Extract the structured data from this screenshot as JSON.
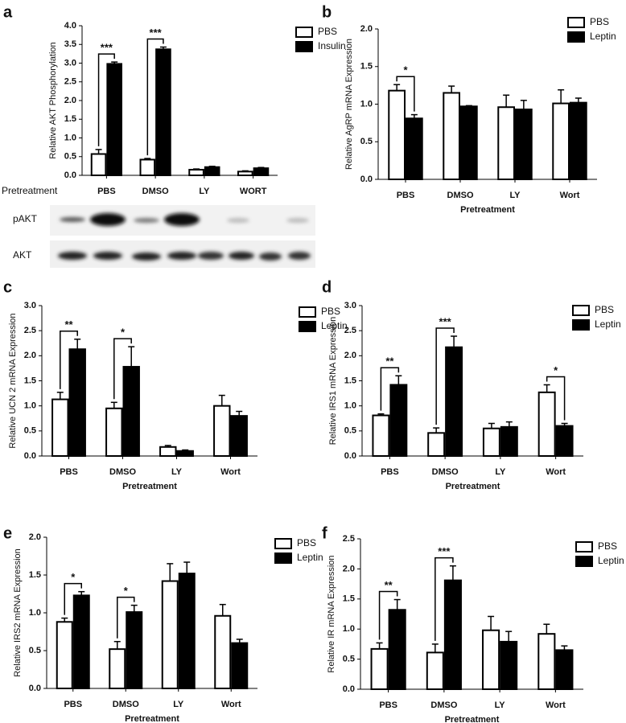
{
  "chart_data": [
    {
      "type": "bar",
      "panel": "a",
      "ylabel": "Relative AKT Phosphorylation",
      "row_label": "Pretreatment",
      "categories": [
        "PBS",
        "DMSO",
        "LY",
        "WORT"
      ],
      "series": [
        {
          "name": "PBS",
          "color": "#ffffff",
          "values": [
            0.57,
            0.42,
            0.15,
            0.1
          ],
          "errors": [
            0.12,
            0.03,
            0.02,
            0.02
          ]
        },
        {
          "name": "Insulin",
          "color": "#000000",
          "values": [
            2.98,
            3.37,
            0.22,
            0.19
          ],
          "errors": [
            0.05,
            0.06,
            0.02,
            0.02
          ]
        }
      ],
      "significance": [
        "***",
        "***",
        null,
        null
      ],
      "blot_rows": [
        "pAKT",
        "AKT"
      ],
      "ylim": [
        0,
        4
      ],
      "yticks": [
        {
          "value": 0,
          "label": "0.0"
        },
        0.5,
        {
          "value": 1,
          "label": "1.0"
        },
        1.5,
        {
          "value": 2,
          "label": "2.0"
        },
        2.5,
        {
          "value": 3,
          "label": "3.0"
        },
        3.5,
        {
          "value": 4,
          "label": "4.0"
        }
      ]
    },
    {
      "type": "bar",
      "panel": "b",
      "ylabel": "Relative AgRP mRNA Expression",
      "xlabel": "Pretreatment",
      "categories": [
        "PBS",
        "DMSO",
        "LY",
        "Wort"
      ],
      "series": [
        {
          "name": "PBS",
          "color": "#ffffff",
          "values": [
            1.18,
            1.15,
            0.96,
            1.01
          ],
          "errors": [
            0.08,
            0.09,
            0.16,
            0.18
          ]
        },
        {
          "name": "Leptin",
          "color": "#000000",
          "values": [
            0.81,
            0.97,
            0.93,
            1.02
          ],
          "errors": [
            0.05,
            0.01,
            0.12,
            0.06
          ]
        }
      ],
      "significance": [
        "*",
        null,
        null,
        null
      ],
      "ylim": [
        0,
        2
      ],
      "yticks": [
        {
          "value": 0,
          "label": "0.0"
        },
        0.5,
        {
          "value": 1,
          "label": "1.0"
        },
        1.5,
        {
          "value": 2,
          "label": "2.0"
        }
      ]
    },
    {
      "type": "bar",
      "panel": "c",
      "ylabel": "Relative UCN 2 mRNA Expression",
      "xlabel": "Pretreatment",
      "categories": [
        "PBS",
        "DMSO",
        "LY",
        "Wort"
      ],
      "series": [
        {
          "name": "PBS",
          "color": "#ffffff",
          "values": [
            1.13,
            0.95,
            0.18,
            1.0
          ],
          "errors": [
            0.14,
            0.12,
            0.03,
            0.21
          ]
        },
        {
          "name": "Leptin",
          "color": "#000000",
          "values": [
            2.13,
            1.78,
            0.1,
            0.8
          ],
          "errors": [
            0.2,
            0.4,
            0.02,
            0.09
          ]
        }
      ],
      "significance": [
        "**",
        "*",
        null,
        null
      ],
      "ylim": [
        0,
        3
      ],
      "yticks": [
        {
          "value": 0,
          "label": "0.0"
        },
        0.5,
        {
          "value": 1,
          "label": "1.0"
        },
        1.5,
        {
          "value": 2,
          "label": "2.0"
        },
        2.5,
        {
          "value": 3,
          "label": "3.0"
        }
      ]
    },
    {
      "type": "bar",
      "panel": "d",
      "ylabel": "Relative IRS1 mRNA Expression",
      "xlabel": "Pretreatment",
      "categories": [
        "PBS",
        "DMSO",
        "LY",
        "Wort"
      ],
      "series": [
        {
          "name": "PBS",
          "color": "#ffffff",
          "values": [
            0.81,
            0.46,
            0.55,
            1.27
          ],
          "errors": [
            0.03,
            0.1,
            0.1,
            0.15
          ]
        },
        {
          "name": "Leptin",
          "color": "#000000",
          "values": [
            1.42,
            2.17,
            0.58,
            0.6
          ],
          "errors": [
            0.18,
            0.22,
            0.1,
            0.05
          ]
        }
      ],
      "significance": [
        "**",
        "***",
        null,
        "*"
      ],
      "ylim": [
        0,
        3
      ],
      "yticks": [
        {
          "value": 0,
          "label": "0.0"
        },
        0.5,
        {
          "value": 1,
          "label": "1.0"
        },
        1.5,
        {
          "value": 2,
          "label": "2.0"
        },
        2.5,
        {
          "value": 3,
          "label": "3.0"
        }
      ]
    },
    {
      "type": "bar",
      "panel": "e",
      "ylabel": "Relative IRS2 mRNA Expression",
      "xlabel": "Pretreatment",
      "categories": [
        "PBS",
        "DMSO",
        "LY",
        "Wort"
      ],
      "series": [
        {
          "name": "PBS",
          "color": "#ffffff",
          "values": [
            0.88,
            0.52,
            1.42,
            0.96
          ],
          "errors": [
            0.05,
            0.1,
            0.23,
            0.15
          ]
        },
        {
          "name": "Leptin",
          "color": "#000000",
          "values": [
            1.23,
            1.01,
            1.52,
            0.6
          ],
          "errors": [
            0.05,
            0.09,
            0.15,
            0.05
          ]
        }
      ],
      "significance": [
        "*",
        "*",
        null,
        null
      ],
      "ylim": [
        0,
        2
      ],
      "yticks": [
        {
          "value": 0,
          "label": "0.0"
        },
        0.5,
        {
          "value": 1,
          "label": "1.0"
        },
        1.5,
        {
          "value": 2,
          "label": "2.0"
        }
      ]
    },
    {
      "type": "bar",
      "panel": "f",
      "ylabel": "Relative IR mRNA Expression",
      "xlabel": "Pretreatment",
      "categories": [
        "PBS",
        "DMSO",
        "LY",
        "Wort"
      ],
      "series": [
        {
          "name": "PBS",
          "color": "#ffffff",
          "values": [
            0.67,
            0.61,
            0.98,
            0.92
          ],
          "errors": [
            0.1,
            0.14,
            0.23,
            0.16
          ]
        },
        {
          "name": "Leptin",
          "color": "#000000",
          "values": [
            1.32,
            1.81,
            0.79,
            0.65
          ],
          "errors": [
            0.17,
            0.24,
            0.17,
            0.07
          ]
        }
      ],
      "significance": [
        "**",
        "***",
        null,
        null
      ],
      "ylim": [
        0,
        2.5
      ],
      "yticks": [
        {
          "value": 0,
          "label": "0.0"
        },
        0.5,
        {
          "value": 1,
          "label": "1.0"
        },
        1.5,
        {
          "value": 2,
          "label": "2.0"
        },
        2.5
      ]
    }
  ]
}
